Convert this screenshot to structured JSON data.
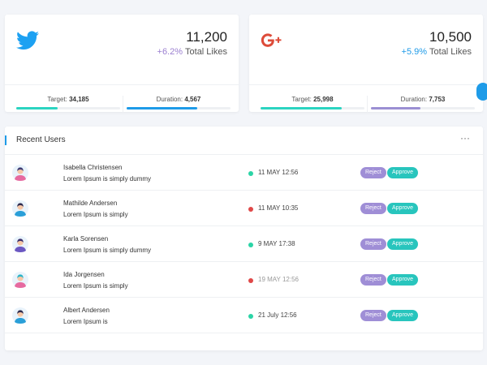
{
  "colors": {
    "twitter": "#1da1f2",
    "google": "#dd4b39",
    "purple": "#9b7fd0",
    "teal": "#2bd4c1",
    "blue": "#1e9be8",
    "status_green": "#2bd4a6",
    "status_red": "#e04848"
  },
  "stats": [
    {
      "icon": "twitter-icon",
      "value": "11,200",
      "change": "+6.2%",
      "change_color": "#9b7fd0",
      "change_label": "Total Likes",
      "target_label": "Target:",
      "target_value": "34,185",
      "target_progress": 0.4,
      "target_color": "#2bd4c1",
      "duration_label": "Duration:",
      "duration_value": "4,567",
      "duration_progress": 0.68,
      "duration_color": "#1e9be8"
    },
    {
      "icon": "google-plus-icon",
      "value": "10,500",
      "change": "+5.9%",
      "change_color": "#1e9be8",
      "change_label": "Total Likes",
      "target_label": "Target:",
      "target_value": "25,998",
      "target_progress": 0.78,
      "target_color": "#2bd4c1",
      "duration_label": "Duration:",
      "duration_value": "7,753",
      "duration_progress": 0.48,
      "duration_color": "#9b8fd3"
    }
  ],
  "recent_users": {
    "title": "Recent Users",
    "menu_icon": "more-horizontal-icon",
    "menu_label": "···",
    "reject_label": "Reject",
    "approve_label": "Approve",
    "rows": [
      {
        "name": "Isabella Christensen",
        "desc": "Lorem Ipsum is simply dummy",
        "date": "11 MAY 12:56",
        "status": "green",
        "muted": false,
        "avatar_hair": "#3f3d73",
        "avatar_shirt": "#e66aa0"
      },
      {
        "name": "Mathilde Andersen",
        "desc": "Lorem Ipsum is simply",
        "date": "11 MAY 10:35",
        "status": "red",
        "muted": false,
        "avatar_hair": "#2d2b4f",
        "avatar_shirt": "#2a9fd8"
      },
      {
        "name": "Karla Sorensen",
        "desc": "Lorem Ipsum is simply dummy",
        "date": "9 MAY 17:38",
        "status": "green",
        "muted": false,
        "avatar_hair": "#3a2f6b",
        "avatar_shirt": "#6b58c2"
      },
      {
        "name": "Ida Jorgensen",
        "desc": "Lorem Ipsum is simply",
        "date": "19 MAY 12:56",
        "status": "red",
        "muted": true,
        "avatar_hair": "#2ab5c9",
        "avatar_shirt": "#e66aa0"
      },
      {
        "name": "Albert Andersen",
        "desc": "Lorem Ipsum is",
        "date": "21 July 12:56",
        "status": "green",
        "muted": false,
        "avatar_hair": "#2d2b4f",
        "avatar_shirt": "#2a9fd8"
      }
    ]
  }
}
